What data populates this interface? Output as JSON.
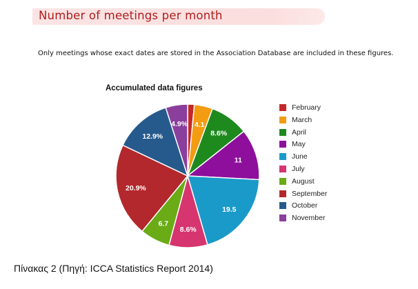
{
  "header": {
    "title": "Number of meetings per month"
  },
  "note": "Only meetings whose exact dates are stored in the Association Database are included in these figures.",
  "caption": "Πίνακας 2 (Πηγή: ICCA Statistics Report 2014)",
  "chart_data": {
    "type": "pie",
    "title": "Accumulated data figures",
    "legend_position": "right",
    "categories": [
      "February",
      "March",
      "April",
      "May",
      "June",
      "July",
      "August",
      "September",
      "October",
      "November"
    ],
    "values": [
      1.5,
      4.1,
      8.6,
      11.4,
      19.5,
      8.6,
      6.7,
      20.9,
      12.9,
      4.9
    ],
    "data_labels": [
      "",
      "4.1",
      "8.6%",
      "11",
      "19.5",
      "8.6%",
      "6.7",
      "20.9%",
      "12.9%",
      "4.9%"
    ],
    "colors": [
      "#c62828",
      "#f39c12",
      "#1e8a1e",
      "#8e0f9c",
      "#1a9ac9",
      "#d6356f",
      "#6aab16",
      "#b3282c",
      "#275a8c",
      "#8a3f9c"
    ]
  }
}
